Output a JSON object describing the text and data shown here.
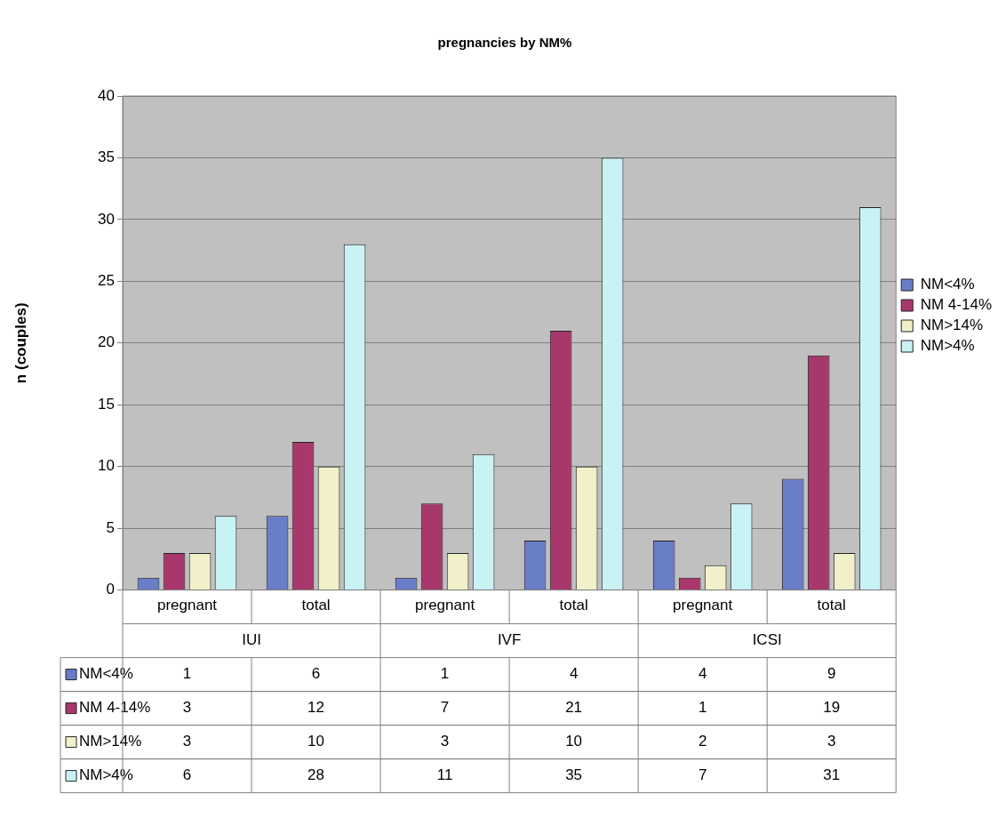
{
  "chart_data": {
    "type": "bar",
    "title": "pregnancies by NM%",
    "ylabel": "n (couples)",
    "categories": [
      "pregnant",
      "total",
      "pregnant",
      "total",
      "pregnant",
      "total"
    ],
    "annotations": [
      "IUI",
      "IVF",
      "ICSI"
    ],
    "series": [
      {
        "name": "NM<4%",
        "color": "#6a7dc9",
        "values": [
          1,
          6,
          1,
          4,
          4,
          9
        ]
      },
      {
        "name": "NM 4-14%",
        "color": "#a8386c",
        "values": [
          3,
          12,
          7,
          21,
          1,
          19
        ]
      },
      {
        "name": "NM>14%",
        "color": "#f2f0c8",
        "values": [
          3,
          10,
          3,
          10,
          2,
          3
        ]
      },
      {
        "name": "NM>4%",
        "color": "#c9f2f5",
        "values": [
          6,
          28,
          11,
          35,
          7,
          31
        ]
      }
    ],
    "ylim": [
      0,
      40
    ],
    "yticks": [
      0,
      5,
      10,
      15,
      20,
      25,
      30,
      35,
      40
    ],
    "grid": "y",
    "legend": "right",
    "data_labels": true
  }
}
